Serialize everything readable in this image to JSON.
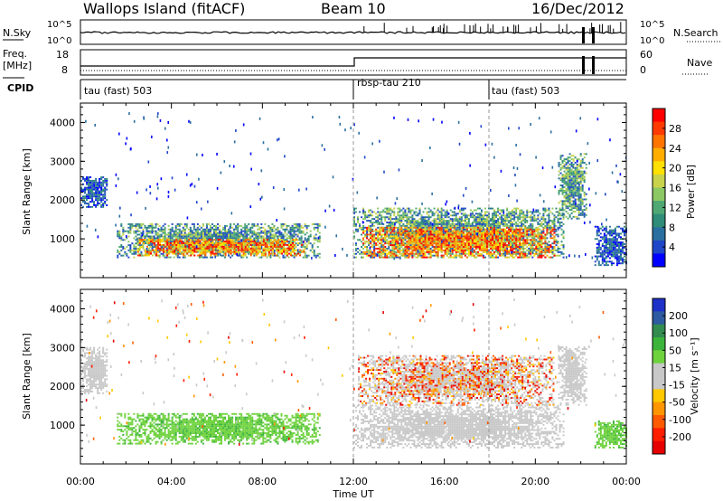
{
  "header": {
    "station": "Wallops Island (fitACF)",
    "beam": "Beam 10",
    "date": "16/Dec/2012"
  },
  "strips": {
    "sky_label": "N.Sky",
    "sky_ticks": [
      "10^5",
      "10^0"
    ],
    "search_label": "N.Search",
    "search_ticks": [
      "10^5",
      "10^0"
    ],
    "freq_label": "Freq.",
    "freq_unit": "[MHz]",
    "freq_ticks": [
      "18",
      "8"
    ],
    "nave_label": "Nave",
    "nave_ticks": [
      "60",
      "0"
    ],
    "cpid_label": "CPID",
    "cpid_segments": [
      {
        "label": "tau (fast) 503",
        "start": 0,
        "end": 12.0
      },
      {
        "label": "rbsp-tau 210",
        "start": 12.0,
        "end": 18.0
      },
      {
        "label": "tau (fast) 503",
        "start": 18.0,
        "end": 24.0
      }
    ]
  },
  "colorbars": {
    "power": {
      "title": "Power [dB]",
      "ticks": [
        "28",
        "24",
        "20",
        "16",
        "12",
        "8",
        "4"
      ],
      "colors": [
        "#ff0000",
        "#ff3a00",
        "#ff7400",
        "#ffae00",
        "#ffe000",
        "#c8d24b",
        "#8cc864",
        "#4fa873",
        "#2f8c78",
        "#2a6fa0",
        "#1f46c8",
        "#0000ff"
      ]
    },
    "velocity": {
      "title": "Velocity [m s⁻¹]",
      "ticks": [
        "200",
        "100",
        "50",
        "15",
        "-15",
        "-50",
        "-100",
        "-200"
      ],
      "colors": [
        "#1e32c8",
        "#2d5aa0",
        "#328c50",
        "#3cb43c",
        "#6ed23c",
        "#c8c8c8",
        "#c8c8c8",
        "#ffc800",
        "#ff9600",
        "#ff5a00",
        "#ff1e00",
        "#e60000"
      ]
    }
  },
  "chart_data": [
    {
      "type": "heatmap",
      "name": "power",
      "ylabel": "Slant Range [km]",
      "ylim": [
        0,
        4500
      ],
      "yticks": [
        1000,
        2000,
        3000,
        4000
      ],
      "xlim": [
        0,
        24
      ],
      "echo_regions": [
        {
          "t0": 0.0,
          "t1": 1.2,
          "r0": 1800,
          "r1": 2600,
          "level": "low"
        },
        {
          "t0": 1.6,
          "t1": 10.5,
          "r0": 500,
          "r1": 1400,
          "level": "mid"
        },
        {
          "t0": 2.5,
          "t1": 9.8,
          "r0": 550,
          "r1": 1000,
          "level": "high"
        },
        {
          "t0": 12.0,
          "t1": 21.2,
          "r0": 500,
          "r1": 1800,
          "level": "mid"
        },
        {
          "t0": 12.4,
          "t1": 20.8,
          "r0": 500,
          "r1": 1300,
          "level": "high"
        },
        {
          "t0": 21.0,
          "t1": 22.2,
          "r0": 1500,
          "r1": 3200,
          "level": "mid"
        },
        {
          "t0": 22.6,
          "t1": 24.0,
          "r0": 300,
          "r1": 1300,
          "level": "low"
        }
      ]
    },
    {
      "type": "heatmap",
      "name": "velocity",
      "ylabel": "Slant Range [km]",
      "xlabel": "Time UT",
      "ylim": [
        0,
        4500
      ],
      "yticks": [
        1000,
        2000,
        3000,
        4000
      ],
      "xlim": [
        0,
        24
      ],
      "xticks": [
        "00:00",
        "04:00",
        "08:00",
        "12:00",
        "16:00",
        "20:00",
        "00:00"
      ],
      "echo_regions": [
        {
          "t0": 0.0,
          "t1": 1.2,
          "r0": 1800,
          "r1": 3000,
          "vel": "ground"
        },
        {
          "t0": 1.6,
          "t1": 10.5,
          "r0": 500,
          "r1": 1300,
          "vel": "50"
        },
        {
          "t0": 12.0,
          "t1": 21.2,
          "r0": 400,
          "r1": 1500,
          "vel": "ground"
        },
        {
          "t0": 12.2,
          "t1": 20.8,
          "r0": 1500,
          "r1": 2800,
          "vel": "mixed"
        },
        {
          "t0": 21.0,
          "t1": 22.2,
          "r0": 1500,
          "r1": 3000,
          "vel": "ground"
        },
        {
          "t0": 22.6,
          "t1": 24.0,
          "r0": 400,
          "r1": 1100,
          "vel": "50"
        }
      ]
    }
  ]
}
